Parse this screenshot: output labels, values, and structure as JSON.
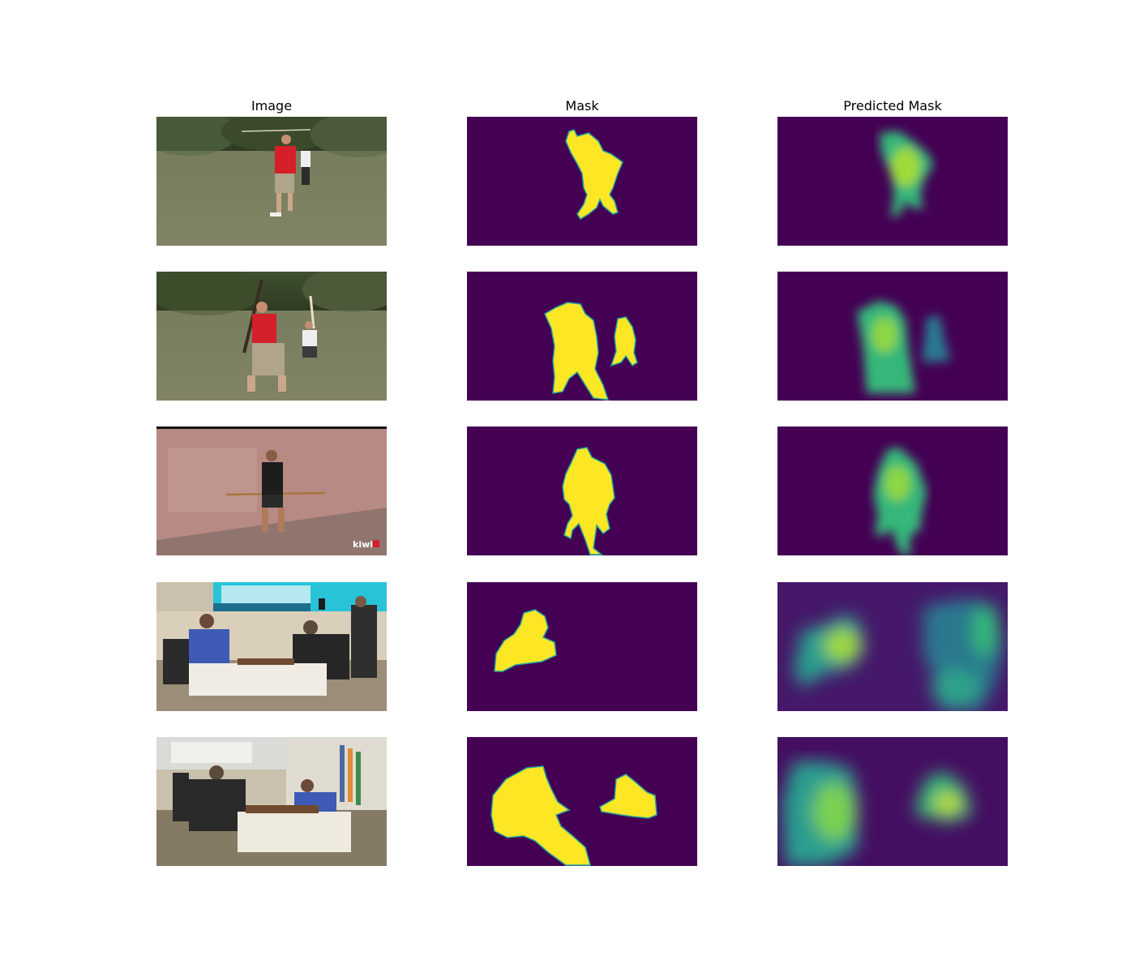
{
  "columns": [
    "Image",
    "Mask",
    "Predicted Mask"
  ],
  "colors": {
    "mask_background": "#440154",
    "mask_foreground": "#fde725",
    "mask_edge": "#21a5a0",
    "pred_mid": "#35b779",
    "pred_low": "#2a788e",
    "grass": "#7a8060",
    "trees": "#3f4f2e",
    "wall": "#b88a84",
    "screen": "#29c3d8",
    "room": "#c9c0ad"
  },
  "watermark": "kiwi",
  "rows": [
    {
      "scene": "park-single-fighter"
    },
    {
      "scene": "park-two-fighters"
    },
    {
      "scene": "wall-staff-fighter"
    },
    {
      "scene": "chess-match-left"
    },
    {
      "scene": "chess-match-right"
    }
  ]
}
